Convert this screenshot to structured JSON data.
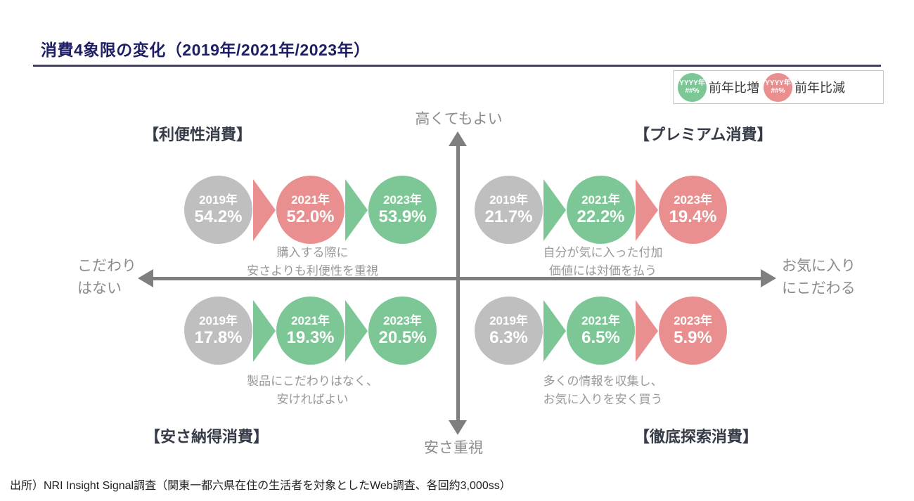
{
  "title": "消費4象限の変化（2019年/2021年/2023年）",
  "legend": {
    "increase": {
      "circle_year": "YYYY年",
      "circle_value": "##%",
      "label": "前年比増"
    },
    "decrease": {
      "circle_year": "YYYY年",
      "circle_value": "##%",
      "label": "前年比減"
    }
  },
  "axis_labels": {
    "top": "高くてもよい",
    "bottom": "安さ重視",
    "left_line1": "こだわり",
    "left_line2": "はない",
    "right_line1": "お気に入り",
    "right_line2": "にこだわる"
  },
  "quadrants": [
    {
      "label": "【利便性消費】",
      "points": [
        {
          "year": "2019年",
          "value": "54.2%",
          "color": "gray"
        },
        {
          "year": "2021年",
          "value": "52.0%",
          "color": "red"
        },
        {
          "year": "2023年",
          "value": "53.9%",
          "color": "green"
        }
      ],
      "arrows": [
        "red",
        "green"
      ],
      "description": [
        "購入する際に",
        "安さよりも利便性を重視"
      ]
    },
    {
      "label": "【プレミアム消費】",
      "points": [
        {
          "year": "2019年",
          "value": "21.7%",
          "color": "gray"
        },
        {
          "year": "2021年",
          "value": "22.2%",
          "color": "green"
        },
        {
          "year": "2023年",
          "value": "19.4%",
          "color": "red"
        }
      ],
      "arrows": [
        "green",
        "red"
      ],
      "description": [
        "自分が気に入った付加",
        "価値には対価を払う"
      ]
    },
    {
      "label": "【安さ納得消費】",
      "points": [
        {
          "year": "2019年",
          "value": "17.8%",
          "color": "gray"
        },
        {
          "year": "2021年",
          "value": "19.3%",
          "color": "green"
        },
        {
          "year": "2023年",
          "value": "20.5%",
          "color": "green"
        }
      ],
      "arrows": [
        "green",
        "green"
      ],
      "description": [
        "製品にこだわりはなく、",
        "安ければよい"
      ]
    },
    {
      "label": "【徹底探索消費】",
      "points": [
        {
          "year": "2019年",
          "value": "6.3%",
          "color": "gray"
        },
        {
          "year": "2021年",
          "value": "6.5%",
          "color": "green"
        },
        {
          "year": "2023年",
          "value": "5.9%",
          "color": "red"
        }
      ],
      "arrows": [
        "green",
        "red"
      ],
      "description": [
        "多くの情報を収集し、",
        "お気に入りを安く買う"
      ]
    }
  ],
  "source": "出所）NRI Insight Signal調査（関東一都六県在住の生活者を対象としたWeb調査、各回約3,000ss）",
  "colors": {
    "increase_green": "#7cc795",
    "decrease_red": "#e98f90",
    "neutral_gray": "#bfbfbf",
    "title_navy": "#1e1e64",
    "axis_gray": "#7f7f7f"
  },
  "chart_data": {
    "type": "table",
    "title": "消費4象限の変化（2019年/2021年/2023年）",
    "categories": [
      "2019年",
      "2021年",
      "2023年"
    ],
    "series": [
      {
        "name": "利便性消費",
        "values": [
          54.2,
          52.0,
          53.9
        ]
      },
      {
        "name": "プレミアム消費",
        "values": [
          21.7,
          22.2,
          19.4
        ]
      },
      {
        "name": "安さ納得消費",
        "values": [
          17.8,
          19.3,
          20.5
        ]
      },
      {
        "name": "徹底探索消費",
        "values": [
          6.3,
          6.5,
          5.9
        ]
      }
    ],
    "unit": "%",
    "layout_hints": {
      "diagram": "four-quadrant map with three year bubbles per quadrant",
      "vertical_axis_top": "高くてもよい",
      "vertical_axis_bottom": "安さ重視",
      "horizontal_axis_left": "こだわりはない",
      "horizontal_axis_right": "お気に入りにこだわる",
      "legend": "green bubble = 前年比増 (YoY increase), red bubble = 前年比減 (YoY decrease), gray = base year"
    }
  }
}
